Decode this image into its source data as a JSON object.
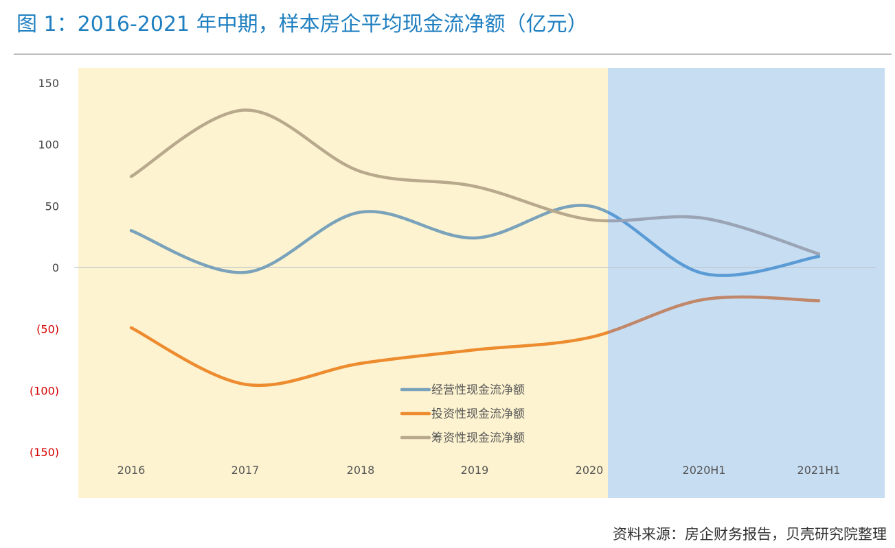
{
  "title": "图 1：2016-2021 年中期，样本房企平均现金流净额（亿元）",
  "source": "资料来源：房企财务报告，贝壳研究院整理",
  "colors": {
    "title": "#1f7fc0",
    "annual_band": "#fdf3d0",
    "interim_band": "#c7ddf2",
    "negative_tick": "#d40000",
    "positive_tick": "#444444"
  },
  "chart_data": {
    "type": "line",
    "title": "2016-2021 年中期，样本房企平均现金流净额（亿元）",
    "categories": [
      "2016",
      "2017",
      "2018",
      "2019",
      "2020",
      "2020H1",
      "2021H1"
    ],
    "ylim": [
      -150,
      150
    ],
    "yticks": [
      {
        "value": 150,
        "label": "150"
      },
      {
        "value": 100,
        "label": "100"
      },
      {
        "value": 50,
        "label": "50"
      },
      {
        "value": 0,
        "label": "0"
      },
      {
        "value": -50,
        "label": "(50)"
      },
      {
        "value": -100,
        "label": "(100)"
      },
      {
        "value": -150,
        "label": "(150)"
      }
    ],
    "series": [
      {
        "name": "经营性现金流净额",
        "color": "#7aa3bb",
        "color_interim": "#5b9bd5",
        "values": [
          30,
          -4,
          45,
          24,
          50,
          -5,
          9
        ]
      },
      {
        "name": "投资性现金流净额",
        "color": "#ed8b2f",
        "color_interim": "#c0876a",
        "values": [
          -49,
          -95,
          -78,
          -67,
          -57,
          -26,
          -27
        ]
      },
      {
        "name": "筹资性现金流净额",
        "color": "#b8a98d",
        "color_interim": "#9aa4b5",
        "values": [
          74,
          128,
          78,
          66,
          39,
          40,
          11
        ]
      }
    ]
  }
}
